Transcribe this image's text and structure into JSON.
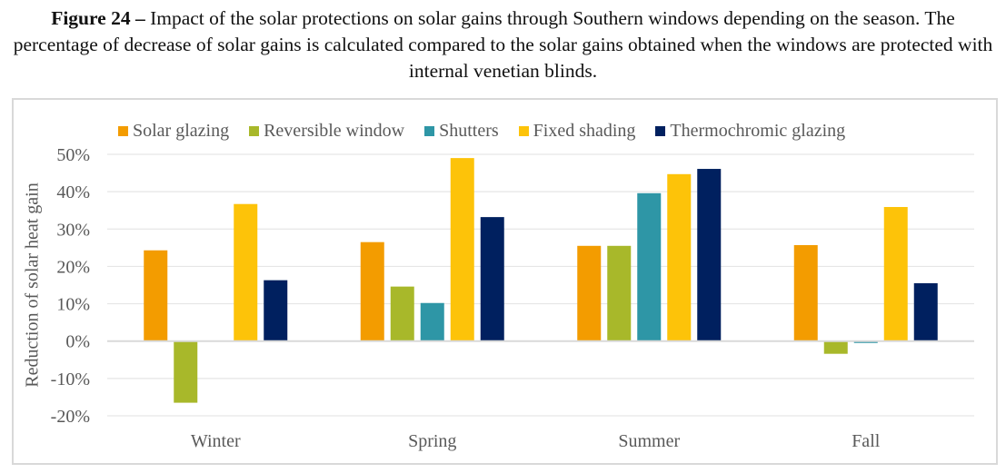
{
  "caption": {
    "label": "Figure 24 –",
    "text": " Impact of the solar protections on solar gains through Southern windows depending on the season. The percentage of decrease of solar gains is calculated compared to the solar gains obtained when the windows are protected with internal venetian blinds."
  },
  "chart_data": {
    "type": "bar",
    "title": "",
    "xlabel": "",
    "ylabel": "Reduction of solar heat gain",
    "categories": [
      "Winter",
      "Spring",
      "Summer",
      "Fall"
    ],
    "ylim": [
      -0.2,
      0.5
    ],
    "yticks": [
      0.5,
      0.4,
      0.3,
      0.2,
      0.1,
      0,
      -0.1,
      -0.2
    ],
    "ytick_labels": [
      "50%",
      "40%",
      "30%",
      "20%",
      "10%",
      "0%",
      "-10%",
      "-20%"
    ],
    "grid": true,
    "legend_position": "top",
    "series": [
      {
        "name": "Solar glazing",
        "color": "#F39C00",
        "values": [
          0.243,
          0.265,
          0.255,
          0.257
        ]
      },
      {
        "name": "Reversible window",
        "color": "#A8B82A",
        "values": [
          -0.165,
          0.146,
          0.255,
          -0.034
        ]
      },
      {
        "name": "Shutters",
        "color": "#2E96A6",
        "values": [
          0.0,
          0.102,
          0.396,
          -0.005
        ]
      },
      {
        "name": "Fixed shading",
        "color": "#FDC309",
        "values": [
          0.367,
          0.49,
          0.447,
          0.359
        ]
      },
      {
        "name": "Thermochromic glazing",
        "color": "#00205F",
        "values": [
          0.163,
          0.332,
          0.461,
          0.155
        ]
      }
    ]
  }
}
